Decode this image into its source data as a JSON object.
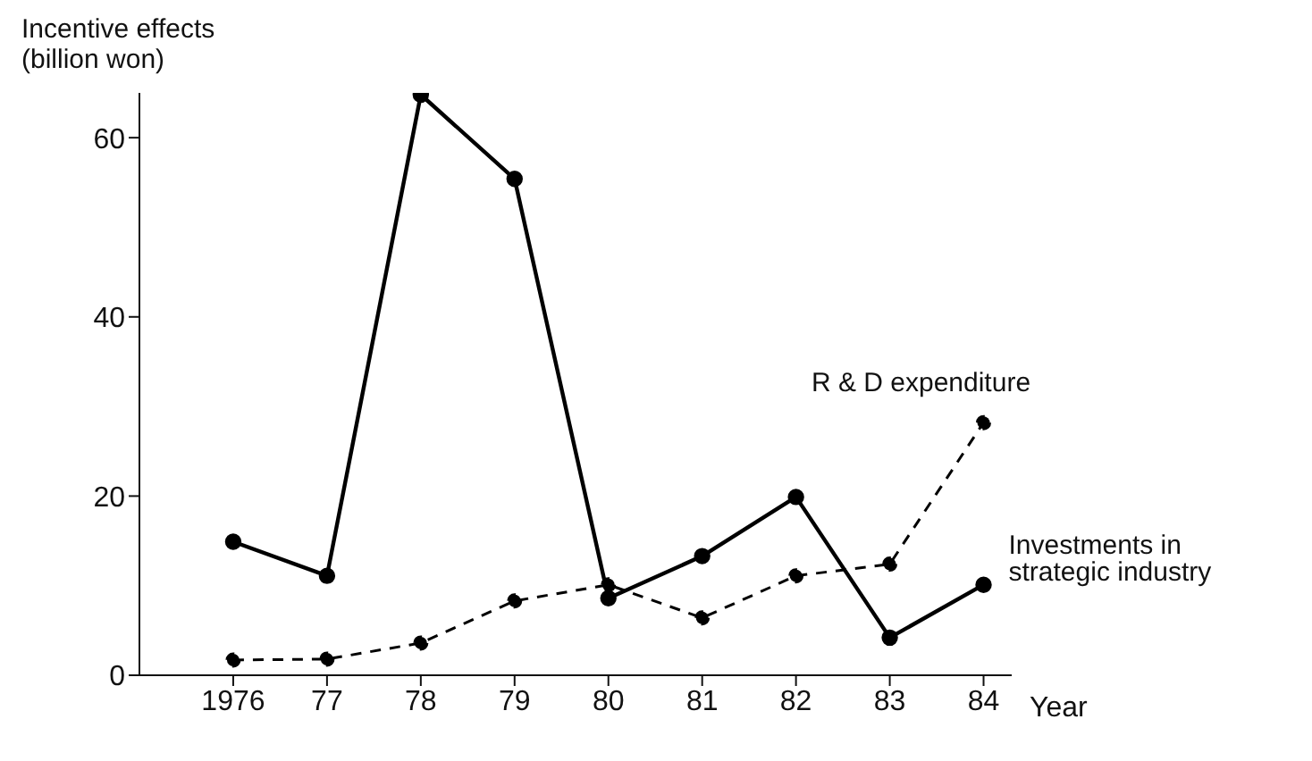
{
  "chart_data": {
    "type": "line",
    "ylabel": "Incentive effects (billion won)",
    "xlabel": "Year",
    "categories": [
      "1976",
      "77",
      "78",
      "79",
      "80",
      "81",
      "82",
      "83",
      "84"
    ],
    "series": [
      {
        "name": "R & D expenditure",
        "color": "#000000",
        "line_style": "dashed",
        "values": [
          1.7,
          1.8,
          3.6,
          8.3,
          10.1,
          6.4,
          11.1,
          12.4,
          28.2
        ]
      },
      {
        "name": "Investments in strategic industry",
        "color": "#000000",
        "line_style": "solid",
        "values": [
          14.9,
          11.1,
          64.8,
          55.4,
          8.6,
          13.3,
          19.9,
          4.2,
          10.1
        ]
      }
    ],
    "ylim": [
      0,
      65
    ],
    "yticks": [
      0,
      20,
      40,
      60
    ],
    "marker": "circle",
    "legend": false,
    "grid": false
  }
}
